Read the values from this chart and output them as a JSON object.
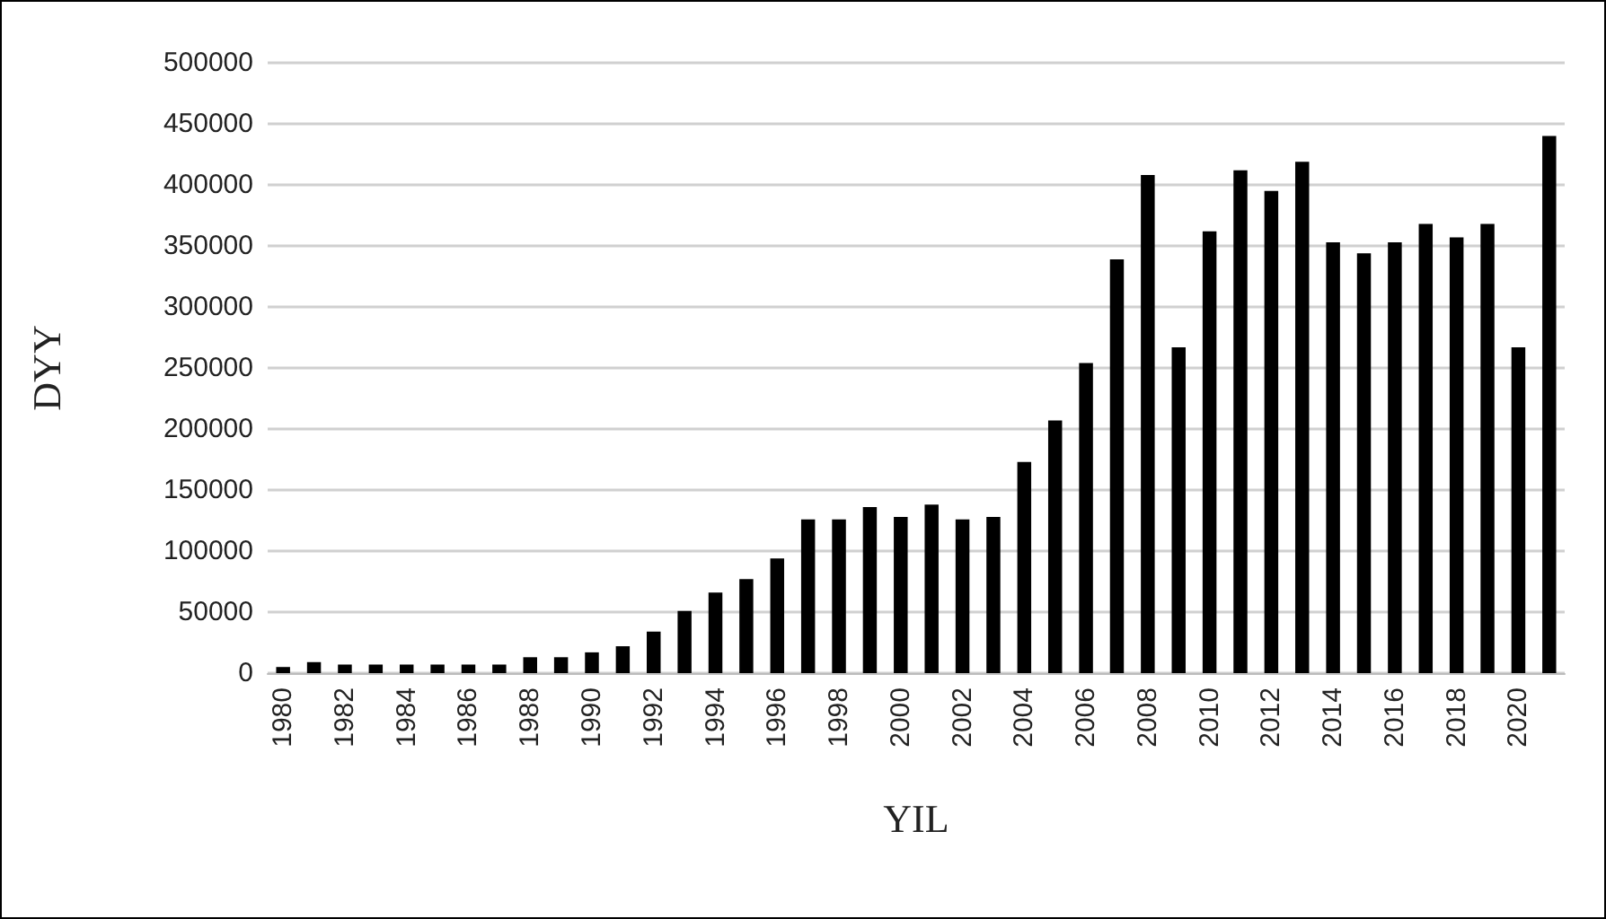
{
  "chart_data": {
    "type": "bar",
    "xlabel": "YIL",
    "ylabel": "DYY",
    "categories": [
      "1980",
      null,
      "1982",
      null,
      "1984",
      null,
      "1986",
      null,
      "1988",
      null,
      "1990",
      null,
      "1992",
      null,
      "1994",
      null,
      "1996",
      null,
      "1998",
      null,
      "2000",
      null,
      "2002",
      null,
      "2004",
      null,
      "2006",
      null,
      "2008",
      null,
      "2010",
      null,
      "2012",
      null,
      "2014",
      null,
      "2016",
      null,
      "2018",
      null,
      "2020",
      null
    ],
    "values": [
      5000,
      9000,
      7000,
      7000,
      7000,
      7000,
      7000,
      7000,
      13000,
      13000,
      17000,
      22000,
      34000,
      51000,
      66000,
      77000,
      94000,
      126000,
      126000,
      136000,
      128000,
      138000,
      126000,
      128000,
      173000,
      207000,
      254000,
      339000,
      408000,
      267000,
      362000,
      412000,
      395000,
      419000,
      353000,
      344000,
      353000,
      368000,
      357000,
      368000,
      267000,
      440000
    ],
    "color": "#000000",
    "ylim": [
      0,
      500000
    ],
    "yticks": [
      0,
      50000,
      100000,
      150000,
      200000,
      250000,
      300000,
      350000,
      400000,
      450000,
      500000
    ],
    "grid": "y"
  }
}
